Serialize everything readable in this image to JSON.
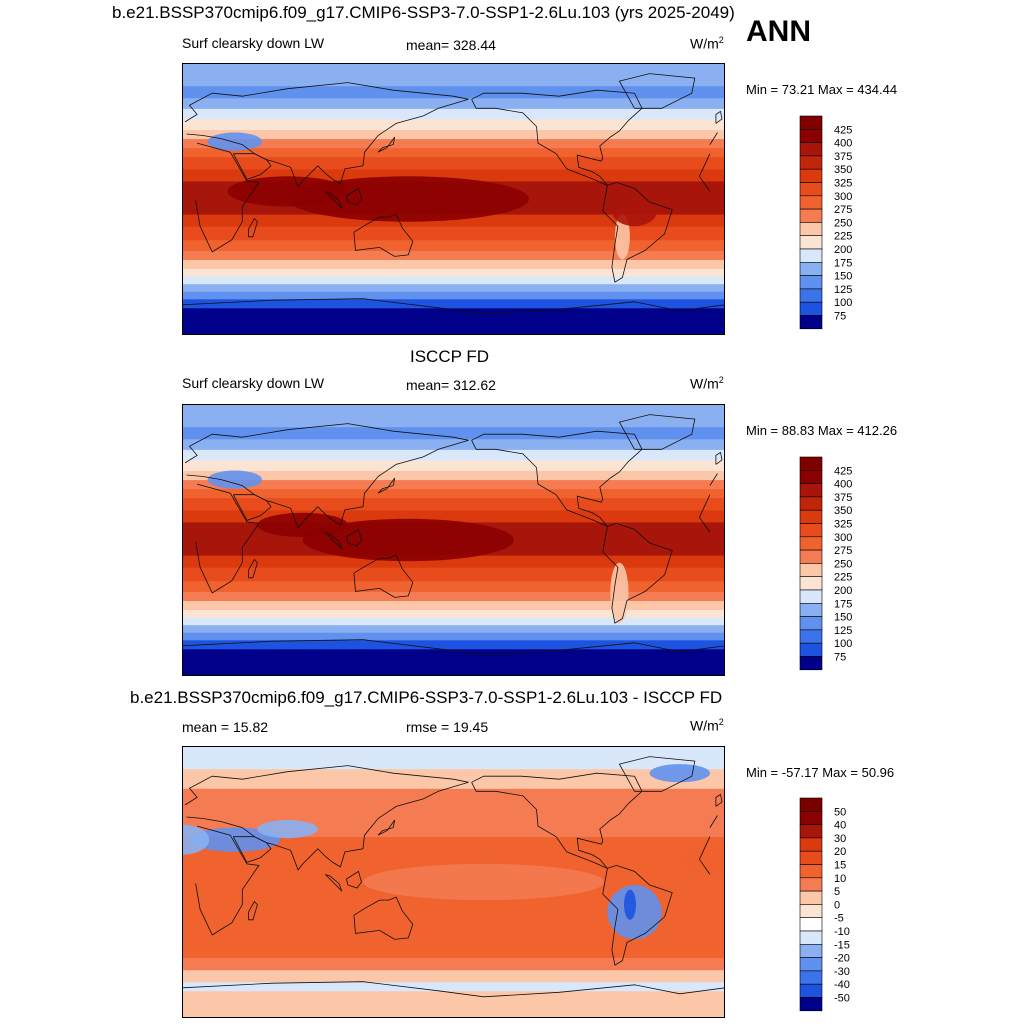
{
  "season_label": "ANN",
  "units_base": "W/m",
  "units_exp": "2",
  "colors": {
    "pos": [
      "#fbe4d4",
      "#fbc7a8",
      "#f8a07b",
      "#f47b52",
      "#f0622e",
      "#e94c1c",
      "#db3a0f",
      "#c2260a",
      "#a8150a",
      "#8b0000"
    ],
    "neg": [
      "#ffffff",
      "#d9e7fb",
      "#b2cdf7",
      "#8ab0f2",
      "#6191ee",
      "#3d73ea",
      "#1d53e0",
      "#1139b3",
      "#0a238a",
      "#00008b"
    ]
  },
  "chart_data": [
    {
      "type": "heatmap",
      "title": "b.e21.BSSP370cmip6.f09_g17.CMIP6-SSP3-7.0-SSP1-2.6Lu.103 (yrs 2025-2049)",
      "left_label": "Surf clearsky down LW",
      "center_label": "mean= 328.44",
      "min_max": "Min =  73.21 Max = 434.44",
      "stats": {
        "mean": 328.44,
        "min": 73.21,
        "max": 434.44
      },
      "x": "longitude",
      "y": "latitude",
      "colorbar_ticks": [
        "425",
        "400",
        "375",
        "350",
        "325",
        "300",
        "275",
        "250",
        "225",
        "200",
        "175",
        "150",
        "125",
        "100",
        "75"
      ]
    },
    {
      "type": "heatmap",
      "title": "ISCCP FD",
      "left_label": "Surf clearsky down LW",
      "center_label": "mean= 312.62",
      "min_max": "Min =  88.83 Max = 412.26",
      "stats": {
        "mean": 312.62,
        "min": 88.83,
        "max": 412.26
      },
      "x": "longitude",
      "y": "latitude",
      "colorbar_ticks": [
        "425",
        "400",
        "375",
        "350",
        "325",
        "300",
        "275",
        "250",
        "225",
        "200",
        "175",
        "150",
        "125",
        "100",
        "75"
      ]
    },
    {
      "type": "heatmap",
      "title": "b.e21.BSSP370cmip6.f09_g17.CMIP6-SSP3-7.0-SSP1-2.6Lu.103 - ISCCP FD",
      "left_label": "mean =  15.82",
      "center_label": "rmse =  19.45",
      "min_max": "Min = -57.17 Max =  50.96",
      "stats": {
        "mean": 15.82,
        "rmse": 19.45,
        "min": -57.17,
        "max": 50.96
      },
      "x": "longitude",
      "y": "latitude",
      "colorbar_ticks": [
        "50",
        "40",
        "30",
        "20",
        "15",
        "10",
        "5",
        "0",
        "-5",
        "-10",
        "-15",
        "-20",
        "-30",
        "-40",
        "-50"
      ]
    }
  ]
}
